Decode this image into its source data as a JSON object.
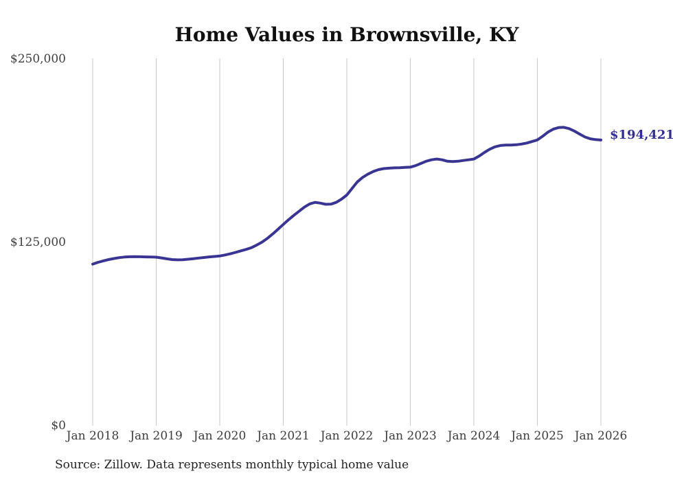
{
  "chart": {
    "title": "Home Values in Brownsville, KY",
    "y_ticks": [
      "$250,000",
      "$125,000",
      "$0"
    ],
    "x_ticks": [
      "Jan 2018",
      "Jan 2019",
      "Jan 2020",
      "Jan 2021",
      "Jan 2022",
      "Jan 2023",
      "Jan 2024",
      "Jan 2025",
      "Jan 2026"
    ],
    "end_label": "$194,421",
    "source": "Source: Zillow. Data represents monthly typical home value",
    "line_color": "#3a3492",
    "end_label_color": "#332e91",
    "grid_color": "#c9c9c9"
  },
  "chart_data": {
    "type": "line",
    "title": "Home Values in Brownsville, KY",
    "series_name": "Monthly typical home value (USD)",
    "x_start": "2018-01",
    "x_end": "2026-01",
    "x_interval": "monthly",
    "xlabel": "",
    "ylabel": "",
    "ylim": [
      0,
      250000
    ],
    "y_tick_values": [
      0,
      125000,
      250000
    ],
    "x_tick_labels": [
      "Jan 2018",
      "Jan 2019",
      "Jan 2020",
      "Jan 2021",
      "Jan 2022",
      "Jan 2023",
      "Jan 2024",
      "Jan 2025",
      "Jan 2026"
    ],
    "grid": "vertical-only",
    "legend": "none",
    "final_value": 194421,
    "final_value_label": "$194,421",
    "values": [
      110000,
      111200,
      112200,
      113100,
      113800,
      114400,
      114800,
      115000,
      115100,
      115000,
      114900,
      114800,
      114700,
      114200,
      113600,
      113100,
      112900,
      113000,
      113300,
      113700,
      114100,
      114500,
      114900,
      115200,
      115500,
      116200,
      117000,
      118000,
      119000,
      120000,
      121200,
      123000,
      125000,
      127500,
      130500,
      133700,
      137000,
      140200,
      143200,
      146000,
      148800,
      151000,
      152000,
      151500,
      150700,
      150800,
      152000,
      154200,
      157000,
      161500,
      166000,
      169000,
      171200,
      173000,
      174300,
      175000,
      175300,
      175500,
      175600,
      175800,
      176000,
      177000,
      178500,
      180000,
      181000,
      181500,
      181000,
      180000,
      179800,
      180000,
      180500,
      181000,
      181500,
      183500,
      186000,
      188200,
      189800,
      190700,
      191000,
      191000,
      191200,
      191700,
      192400,
      193400,
      194500,
      197000,
      199800,
      201800,
      202900,
      203100,
      202200,
      200500,
      198400,
      196500,
      195300,
      194700,
      194421
    ],
    "source": "Source: Zillow. Data represents monthly typical home value"
  }
}
